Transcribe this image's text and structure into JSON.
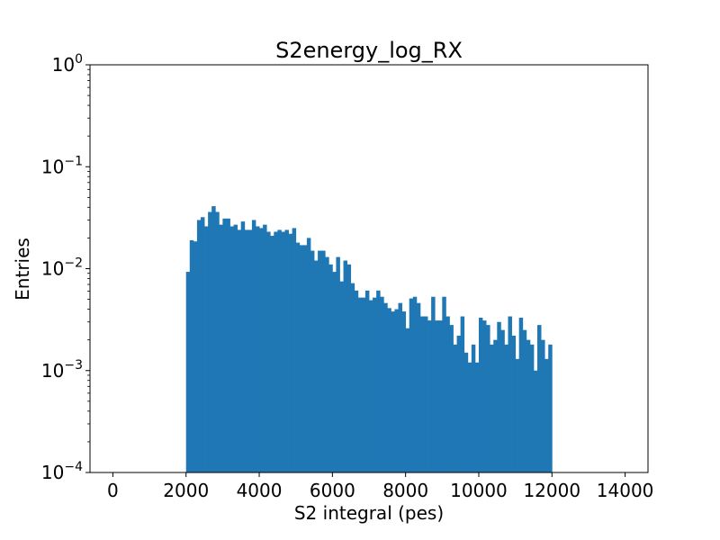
{
  "chart_data": {
    "type": "bar",
    "title": "S2energy_log_RX",
    "xlabel": "S2 integral (pes)",
    "ylabel": "Entries",
    "xlim": [
      -625,
      14625
    ],
    "ylim": [
      0.0001,
      1
    ],
    "yscale": "log",
    "grid": false,
    "legend": "none",
    "bar_color": "#1f77b4",
    "xticks": [
      0,
      2000,
      4000,
      6000,
      8000,
      10000,
      12000,
      14000
    ],
    "xtick_labels": [
      "0",
      "2000",
      "4000",
      "6000",
      "8000",
      "10000",
      "12000",
      "14000"
    ],
    "ytick_labels": [
      {
        "base": "10",
        "exp": "−4"
      },
      {
        "base": "10",
        "exp": "−3"
      },
      {
        "base": "10",
        "exp": "−2"
      },
      {
        "base": "10",
        "exp": "−1"
      },
      {
        "base": "10",
        "exp": "0"
      }
    ],
    "bin_width": 100,
    "bin_start": 2000,
    "values": [
      0.0093,
      0.019,
      0.0185,
      0.03,
      0.032,
      0.026,
      0.036,
      0.041,
      0.036,
      0.027,
      0.031,
      0.031,
      0.026,
      0.027,
      0.024,
      0.029,
      0.024,
      0.024,
      0.03,
      0.026,
      0.025,
      0.027,
      0.023,
      0.021,
      0.023,
      0.024,
      0.023,
      0.024,
      0.022,
      0.025,
      0.018,
      0.017,
      0.017,
      0.02,
      0.015,
      0.012,
      0.015,
      0.015,
      0.013,
      0.011,
      0.0093,
      0.013,
      0.0075,
      0.012,
      0.011,
      0.0072,
      0.0061,
      0.0052,
      0.0052,
      0.0061,
      0.0049,
      0.0052,
      0.0061,
      0.0053,
      0.0046,
      0.0041,
      0.0038,
      0.004,
      0.0046,
      0.0038,
      0.0026,
      0.0051,
      0.0053,
      0.0046,
      0.0034,
      0.0034,
      0.0031,
      0.0053,
      0.0031,
      0.0031,
      0.0053,
      0.0034,
      0.0028,
      0.0018,
      0.0022,
      0.0034,
      0.0015,
      0.0012,
      0.0018,
      0.0012,
      0.0033,
      0.0031,
      0.0028,
      0.0018,
      0.002,
      0.003,
      0.0025,
      0.0018,
      0.0034,
      0.0022,
      0.0013,
      0.0033,
      0.0025,
      0.002,
      0.0018,
      0.001,
      0.0028,
      0.002,
      0.0013,
      0.0018
    ]
  }
}
